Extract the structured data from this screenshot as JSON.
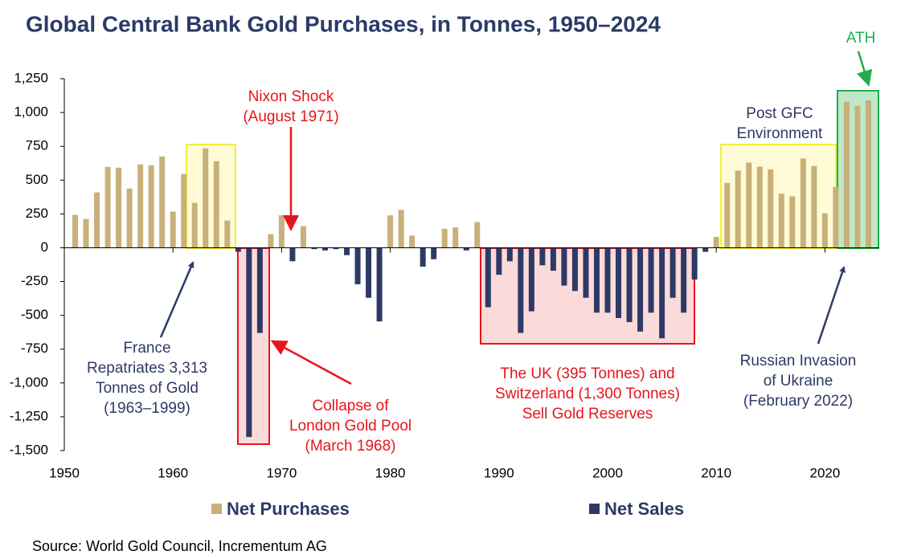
{
  "chart_data": {
    "type": "bar",
    "title": "Global Central Bank Gold Purchases, in Tonnes, 1950–2024",
    "source": "Source: World Gold Council, Incrementum AG",
    "x": [
      1951,
      1952,
      1953,
      1954,
      1955,
      1956,
      1957,
      1958,
      1959,
      1960,
      1961,
      1962,
      1963,
      1964,
      1965,
      1966,
      1967,
      1968,
      1969,
      1970,
      1971,
      1972,
      1973,
      1974,
      1975,
      1976,
      1977,
      1978,
      1979,
      1980,
      1981,
      1982,
      1983,
      1984,
      1985,
      1986,
      1987,
      1988,
      1989,
      1990,
      1991,
      1992,
      1993,
      1994,
      1995,
      1996,
      1997,
      1998,
      1999,
      2000,
      2001,
      2002,
      2003,
      2004,
      2005,
      2006,
      2007,
      2008,
      2009,
      2010,
      2011,
      2012,
      2013,
      2014,
      2015,
      2016,
      2017,
      2018,
      2019,
      2020,
      2021,
      2022,
      2023,
      2024
    ],
    "series": [
      {
        "name": "Net Purchases",
        "color": "#c8b07a",
        "values": [
          243,
          213,
          409,
          598,
          592,
          438,
          616,
          610,
          675,
          267,
          545,
          332,
          735,
          640,
          201,
          null,
          null,
          null,
          100,
          240,
          null,
          160,
          null,
          null,
          null,
          null,
          null,
          null,
          null,
          240,
          280,
          90,
          null,
          null,
          140,
          150,
          null,
          190,
          null,
          null,
          null,
          null,
          null,
          null,
          null,
          null,
          null,
          null,
          null,
          null,
          null,
          null,
          null,
          null,
          null,
          null,
          null,
          null,
          null,
          80,
          480,
          570,
          630,
          600,
          580,
          400,
          380,
          660,
          605,
          255,
          450,
          1080,
          1050,
          1090
        ]
      },
      {
        "name": "Net Sales",
        "color": "#2e3a66",
        "values": [
          null,
          null,
          null,
          null,
          null,
          null,
          null,
          null,
          null,
          null,
          null,
          null,
          null,
          null,
          null,
          -30,
          -1400,
          -630,
          null,
          null,
          -100,
          null,
          -10,
          -20,
          -10,
          -55,
          -270,
          -370,
          -545,
          null,
          null,
          null,
          -140,
          -85,
          null,
          null,
          -20,
          null,
          -440,
          -200,
          -100,
          -630,
          -470,
          -130,
          -170,
          -280,
          -320,
          -370,
          -480,
          -480,
          -520,
          -550,
          -620,
          -480,
          -670,
          -370,
          -480,
          -235,
          -30,
          null,
          null,
          null,
          null,
          null,
          null,
          null,
          null,
          null,
          null,
          null,
          null,
          null,
          null,
          null
        ]
      }
    ],
    "xlim": [
      1950,
      2025
    ],
    "xticks": [
      1950,
      1960,
      1970,
      1980,
      1990,
      2000,
      2010,
      2020
    ],
    "ylim": [
      -1500,
      1250
    ],
    "yticks": [
      {
        "value": -1500,
        "label": "-1,500"
      },
      {
        "value": -1250,
        "label": "-1,250"
      },
      {
        "value": -1000,
        "label": "-1,000"
      },
      -750,
      -500,
      -250,
      0,
      250,
      500,
      750,
      {
        "value": 1000,
        "label": "1,000"
      },
      {
        "value": 1250,
        "label": "1,250"
      }
    ],
    "annotations": [
      {
        "lines": [
          "Nixon Shock",
          "(August 1971)"
        ]
      },
      {
        "lines": [
          "Post GFC",
          "Environment"
        ]
      },
      {
        "lines": [
          "ATH"
        ]
      },
      {
        "lines": [
          "France",
          "Repatriates 3,313",
          "Tonnes of Gold",
          "(1963–1999)"
        ]
      },
      {
        "lines": [
          "Collapse of",
          "London Gold Pool",
          "(March 1968)"
        ]
      },
      {
        "lines": [
          "The UK (395 Tonnes) and",
          "Switzerland (1,300 Tonnes)",
          "Sell Gold Reserves"
        ]
      },
      {
        "lines": [
          "Russian Invasion",
          "of Ukraine",
          "(February 2022)"
        ]
      }
    ]
  }
}
